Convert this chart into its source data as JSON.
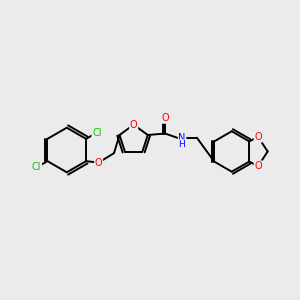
{
  "background_color": "#ebebeb",
  "bond_color": "#000000",
  "atom_colors": {
    "O": "#ff0000",
    "N": "#0000ff",
    "Cl": "#00cc00",
    "C": "#000000"
  },
  "figsize": [
    3.0,
    3.0
  ],
  "dpi": 100
}
